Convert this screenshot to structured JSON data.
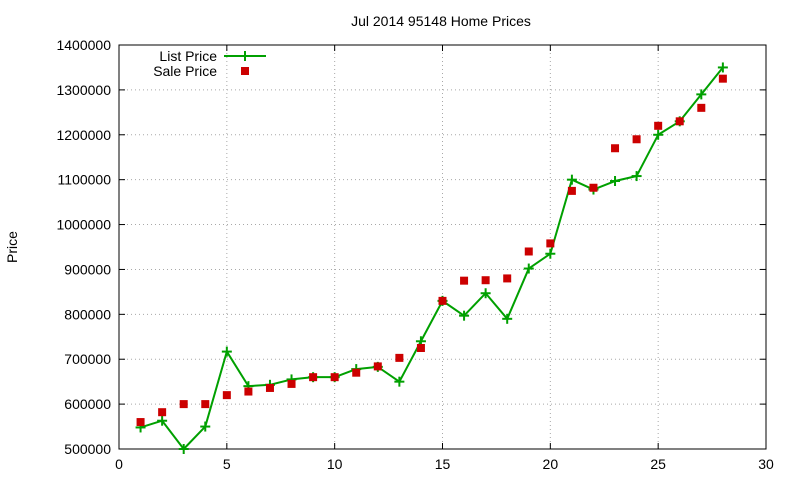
{
  "chart_data": {
    "type": "line",
    "title": "Jul 2014 95148 Home Prices",
    "xlabel": "",
    "ylabel": "Price",
    "xlim": [
      0,
      30
    ],
    "ylim": [
      500000,
      1400000
    ],
    "grid": true,
    "legend_position": "top-left",
    "x_ticks": [
      0,
      5,
      10,
      15,
      20,
      25,
      30
    ],
    "y_ticks": [
      500000,
      600000,
      700000,
      800000,
      900000,
      1000000,
      1100000,
      1200000,
      1300000,
      1400000
    ],
    "series": [
      {
        "name": "List Price",
        "style": "line-with-plus-markers",
        "color": "#00a000",
        "x": [
          1,
          2,
          3,
          4,
          5,
          6,
          7,
          8,
          9,
          10,
          11,
          12,
          13,
          14,
          15,
          16,
          17,
          18,
          19,
          20,
          21,
          22,
          23,
          24,
          25,
          26,
          27,
          28
        ],
        "values": [
          548000,
          563000,
          500000,
          550000,
          717000,
          640000,
          643000,
          655000,
          660000,
          660000,
          678000,
          683000,
          650000,
          740000,
          830000,
          797000,
          847000,
          790000,
          902000,
          935000,
          1100000,
          1078000,
          1097000,
          1108000,
          1200000,
          1230000,
          1290000,
          1350000
        ]
      },
      {
        "name": "Sale Price",
        "style": "square-markers",
        "color": "#cc0000",
        "x": [
          1,
          2,
          3,
          4,
          5,
          6,
          7,
          8,
          9,
          10,
          11,
          12,
          13,
          14,
          15,
          16,
          17,
          18,
          19,
          20,
          21,
          22,
          23,
          24,
          25,
          26,
          27,
          28
        ],
        "values": [
          560000,
          582000,
          600000,
          600000,
          620000,
          628000,
          636000,
          645000,
          660000,
          660000,
          670000,
          684000,
          703000,
          725000,
          830000,
          875000,
          876000,
          880000,
          940000,
          958000,
          1075000,
          1082000,
          1170000,
          1190000,
          1220000,
          1230000,
          1260000,
          1325000
        ]
      }
    ]
  }
}
